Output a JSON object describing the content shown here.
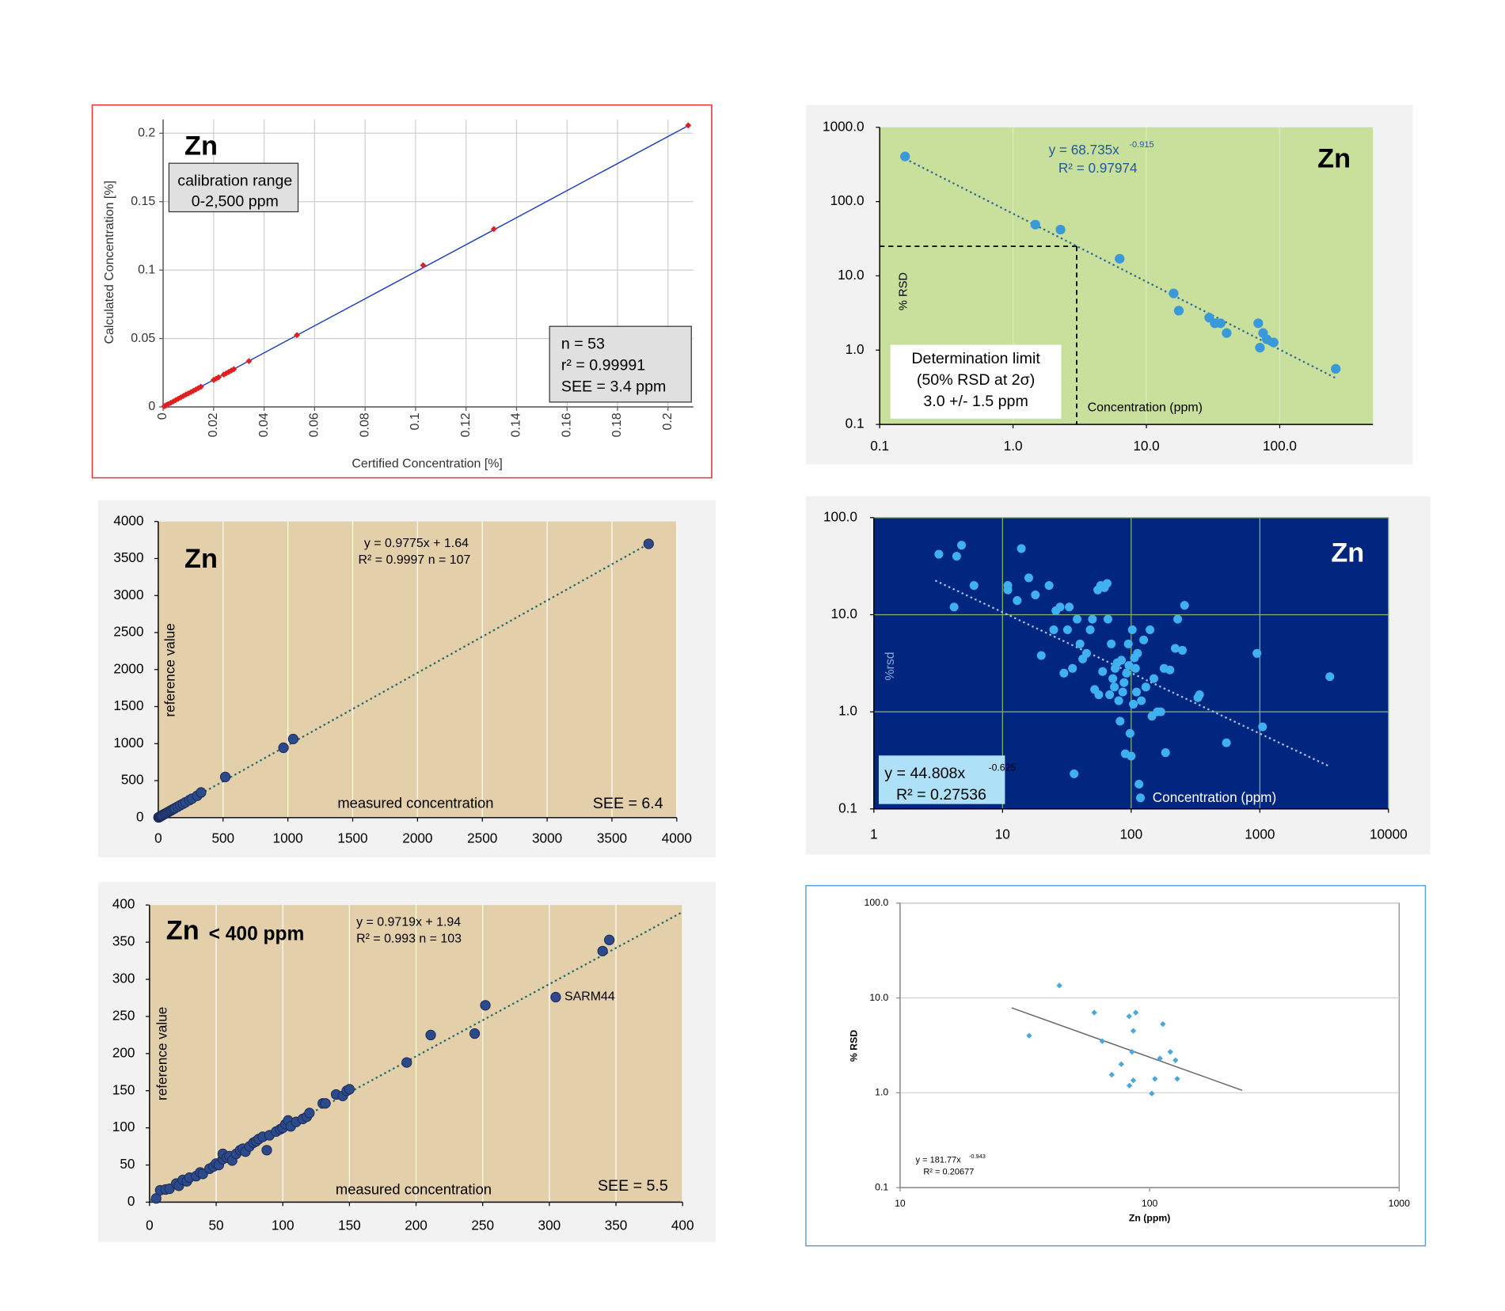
{
  "chart_data": [
    {
      "type": "scatter",
      "title": "Zn",
      "xlabel": "Certified Concentration [%]",
      "ylabel": "Calculated Concentration [%]",
      "annotations": [
        "calibration range",
        "0-2,500 ppm",
        "n = 53",
        "r² = 0.99991",
        "SEE = 3.4 ppm"
      ],
      "x": [
        0.0005,
        0.001,
        0.0015,
        0.002,
        0.003,
        0.004,
        0.005,
        0.006,
        0.007,
        0.008,
        0.009,
        0.01,
        0.011,
        0.012,
        0.013,
        0.014,
        0.015,
        0.02,
        0.021,
        0.022,
        0.024,
        0.025,
        0.026,
        0.027,
        0.028,
        0.034,
        0.053,
        0.103,
        0.131,
        0.208
      ],
      "values": [
        0.0005,
        0.001,
        0.0015,
        0.002,
        0.003,
        0.004,
        0.005,
        0.006,
        0.007,
        0.008,
        0.009,
        0.0099,
        0.0108,
        0.0118,
        0.0128,
        0.0138,
        0.0148,
        0.0197,
        0.0207,
        0.0217,
        0.0236,
        0.0246,
        0.0256,
        0.0266,
        0.0276,
        0.0335,
        0.0525,
        0.1035,
        0.13,
        0.2057
      ],
      "trendline": {
        "x": [
          0,
          0.208
        ],
        "y": [
          0,
          0.2055
        ]
      },
      "xlim": [
        0,
        0.21
      ],
      "ylim": [
        0,
        0.21
      ],
      "xticks": [
        0,
        0.02,
        0.04,
        0.06,
        0.08,
        0.1,
        0.12,
        0.14,
        0.16,
        0.18,
        0.2
      ],
      "yticks": [
        0,
        0.05,
        0.1,
        0.15,
        0.2
      ],
      "xlog": false,
      "ylog": false,
      "grid": "both",
      "grid_color": "#cfcfcf",
      "plot_background": "#ffffff",
      "color": "#e02020",
      "marker": "diamond",
      "trendline_color": "#2040c0",
      "trendline_style": "solid"
    },
    {
      "type": "scatter",
      "title": "Zn",
      "xlabel": "Concentration (ppm)",
      "ylabel": "% RSD",
      "annotations": [
        "y = 68.735x",
        "-0.915",
        "R² = 0.97974",
        "Determination limit",
        "(50% RSD at 2σ)",
        "3.0 +/- 1.5 ppm"
      ],
      "x": [
        0.155,
        1.47,
        2.27,
        6.3,
        16,
        17.5,
        29.6,
        32.6,
        36,
        40,
        69,
        71,
        75,
        80,
        90,
        263
      ],
      "values": [
        405,
        49,
        42,
        17,
        5.8,
        3.4,
        2.74,
        2.3,
        2.3,
        1.7,
        2.3,
        1.08,
        1.7,
        1.4,
        1.27,
        0.56
      ],
      "trendline": {
        "x": [
          0.155,
          263
        ],
        "y": [
          378,
          0.42
        ]
      },
      "determination_limit": {
        "x": 3.0,
        "y": 25
      },
      "xlim": [
        0.1,
        500
      ],
      "ylim": [
        0.1,
        1000
      ],
      "xticks": [
        0.1,
        {
          "value": 1,
          "label": "1.0"
        },
        {
          "value": 10,
          "label": "10.0"
        },
        {
          "value": 100,
          "label": "100.0"
        }
      ],
      "yticks": [
        0.1,
        {
          "value": 1,
          "label": "1.0"
        },
        {
          "value": 10,
          "label": "10.0"
        },
        {
          "value": 100,
          "label": "100.0"
        },
        {
          "value": 1000,
          "label": "1000.0"
        }
      ],
      "xlog": true,
      "ylog": true,
      "grid": "x",
      "grid_color": "#dbe9bf",
      "plot_background": "#c9df9c",
      "color": "#3a9ad9",
      "marker": "circle",
      "trendline_color": "#2a6a9a",
      "trendline_style": "dotted"
    },
    {
      "type": "scatter",
      "title": "Zn",
      "xlabel": "measured concentration",
      "ylabel": "reference value",
      "annotations": [
        "y = 0.9775x + 1.64",
        "R² = 0.9997  n = 107",
        "SEE = 6.4"
      ],
      "x": [
        2,
        5,
        8,
        10,
        15,
        20,
        25,
        30,
        40,
        50,
        60,
        70,
        80,
        90,
        100,
        110,
        120,
        130,
        150,
        170,
        190,
        210,
        240,
        260,
        300,
        330,
        517,
        966,
        1041,
        3783
      ],
      "values": [
        4,
        6,
        9,
        11,
        16,
        21,
        26,
        31,
        41,
        51,
        60,
        70,
        80,
        90,
        99,
        109,
        119,
        129,
        148,
        168,
        187,
        207,
        236,
        256,
        295,
        340,
        550,
        944,
        1062,
        3698
      ],
      "trendline": {
        "x": [
          0,
          3783
        ],
        "y": [
          1.64,
          3699
        ]
      },
      "xlim": [
        0,
        4000
      ],
      "ylim": [
        0,
        4000
      ],
      "xticks": [
        0,
        500,
        1000,
        1500,
        2000,
        2500,
        3000,
        3500,
        4000
      ],
      "yticks": [
        0,
        500,
        1000,
        1500,
        2000,
        2500,
        3000,
        3500,
        4000
      ],
      "xlog": false,
      "ylog": false,
      "grid": "x",
      "grid_color": "#ffffff",
      "plot_background": "#e3cfaa",
      "color": "#2c4a8a",
      "marker": "circle",
      "trendline_color": "#1a6a6a",
      "trendline_style": "dotted"
    },
    {
      "type": "scatter",
      "title": "Zn",
      "xlabel": "Concentration (ppm)",
      "ylabel": "%rsd",
      "annotations": [
        "y = 44.808x",
        "-0.625",
        "R² = 0.27536"
      ],
      "x": [
        3.2,
        4.2,
        4.4,
        4.8,
        6,
        11,
        11,
        13,
        14,
        16,
        18,
        20,
        23,
        25,
        26,
        28,
        30,
        32,
        33,
        35,
        36,
        38,
        40,
        42,
        45,
        48,
        50,
        52,
        55,
        56,
        58,
        60,
        62,
        65,
        66,
        68,
        70,
        72,
        74,
        75,
        78,
        80,
        82,
        84,
        86,
        88,
        90,
        92,
        95,
        96,
        98,
        100,
        102,
        104,
        106,
        108,
        110,
        112,
        115,
        118,
        120,
        125,
        130,
        140,
        145,
        150,
        160,
        170,
        180,
        185,
        200,
        220,
        230,
        250,
        260,
        330,
        340,
        550,
        950,
        1050,
        3500
      ],
      "values": [
        42,
        12,
        40,
        52,
        20,
        18,
        20,
        14,
        48,
        24,
        16,
        3.8,
        20,
        7,
        11,
        12,
        2.5,
        7,
        12,
        2.8,
        0.23,
        9,
        5,
        3.5,
        4,
        7,
        9,
        1.7,
        18,
        1.5,
        20,
        2.6,
        19,
        21,
        9,
        1.5,
        5,
        2.2,
        1.8,
        2.8,
        3.2,
        1.3,
        0.8,
        3.4,
        1.6,
        2,
        0.37,
        2.5,
        5,
        3,
        0.6,
        0.35,
        7,
        1.2,
        3.6,
        2.8,
        1.6,
        4,
        0.18,
        0.13,
        1.3,
        5.5,
        1.8,
        7,
        0.9,
        2.2,
        1,
        1,
        2.8,
        0.38,
        2.7,
        4.5,
        9,
        4.3,
        12.5,
        1.4,
        1.5,
        0.48,
        4,
        0.7,
        2.3
      ],
      "trendline": {
        "x": [
          3,
          3500
        ],
        "y": [
          22.5,
          0.273
        ]
      },
      "xlim": [
        1,
        10000
      ],
      "ylim": [
        0.1,
        100
      ],
      "xticks": [
        1,
        10,
        100,
        1000,
        10000
      ],
      "yticks": [
        0.1,
        {
          "value": 1,
          "label": "1.0"
        },
        {
          "value": 10,
          "label": "10.0"
        },
        {
          "value": 100,
          "label": "100.0"
        }
      ],
      "xlog": true,
      "ylog": true,
      "grid": "both",
      "grid_color": "#8fb070",
      "plot_background": "#00267f",
      "color": "#3fb0f0",
      "marker": "circle",
      "trendline_color": "#a0c8e8",
      "trendline_style": "dotted"
    },
    {
      "type": "scatter",
      "title": "Zn",
      "subtitle": "< 400 ppm",
      "xlabel": "measured concentration",
      "ylabel": "reference value",
      "annotations": [
        "y = 0.9719x + 1.94",
        "R² = 0.993  n = 103",
        "SEE = 5.5"
      ],
      "x": [
        5,
        8,
        12,
        15,
        20,
        22,
        25,
        28,
        30,
        35,
        38,
        40,
        45,
        48,
        50,
        52,
        55,
        55,
        58,
        60,
        62,
        65,
        68,
        70,
        72,
        75,
        78,
        80,
        82,
        85,
        88,
        90,
        95,
        98,
        100,
        102,
        104,
        106,
        110,
        115,
        118,
        120,
        130,
        132,
        140,
        145,
        148,
        150,
        193,
        211,
        244,
        252,
        340,
        345
      ],
      "values": [
        5,
        16,
        17,
        18,
        25,
        22,
        30,
        28,
        33,
        35,
        40,
        38,
        45,
        48,
        52,
        50,
        58,
        65,
        60,
        62,
        56,
        65,
        70,
        72,
        68,
        75,
        80,
        82,
        85,
        88,
        70,
        90,
        95,
        98,
        100,
        105,
        110,
        102,
        108,
        112,
        115,
        120,
        133,
        133,
        145,
        143,
        150,
        152,
        188,
        225,
        227,
        265,
        338,
        353
      ],
      "highlight": {
        "label": "SARM44",
        "x": 304.8,
        "y": 276
      },
      "trendline": {
        "x": [
          0,
          400
        ],
        "y": [
          1.94,
          390.7
        ]
      },
      "xlim": [
        0,
        400
      ],
      "ylim": [
        0,
        400
      ],
      "xticks": [
        0,
        50,
        100,
        150,
        200,
        250,
        300,
        350,
        400
      ],
      "yticks": [
        0,
        50,
        100,
        150,
        200,
        250,
        300,
        350,
        400
      ],
      "xlog": false,
      "ylog": false,
      "grid": "x",
      "grid_color": "#ffffff",
      "plot_background": "#e3cfaa",
      "color": "#2c4a8a",
      "marker": "circle",
      "trendline_color": "#1a6a6a",
      "trendline_style": "dotted"
    },
    {
      "type": "scatter",
      "xlabel": "Zn (ppm)",
      "ylabel": "% RSD",
      "annotations": [
        "y = 181.77x",
        "-0.943",
        "R² = 0.20677"
      ],
      "x": [
        43.5,
        32.9,
        60,
        64.6,
        70.5,
        77,
        82.8,
        88,
        86,
        83,
        86,
        85,
        113,
        110,
        105,
        102,
        121,
        127,
        129
      ],
      "values": [
        13.5,
        4.0,
        7.0,
        3.5,
        1.55,
        2.0,
        6.4,
        7.0,
        4.5,
        1.19,
        1.35,
        2.7,
        5.3,
        2.3,
        1.4,
        0.98,
        2.7,
        2.2,
        1.4
      ],
      "trendline": {
        "x": [
          28,
          235
        ],
        "y": [
          7.86,
          1.06
        ]
      },
      "xlim": [
        10,
        1000
      ],
      "ylim": [
        0.1,
        100
      ],
      "xticks": [
        10,
        100,
        1000
      ],
      "yticks": [
        0.1,
        {
          "value": 1,
          "label": "1.0"
        },
        {
          "value": 10,
          "label": "10.0"
        },
        {
          "value": 100,
          "label": "100.0"
        }
      ],
      "xlog": true,
      "ylog": true,
      "grid": "y",
      "grid_color": "#d0d0d0",
      "plot_background": "#ffffff",
      "color": "#4aa8d8",
      "marker": "diamond",
      "trendline_color": "#666666",
      "trendline_style": "solid"
    }
  ]
}
